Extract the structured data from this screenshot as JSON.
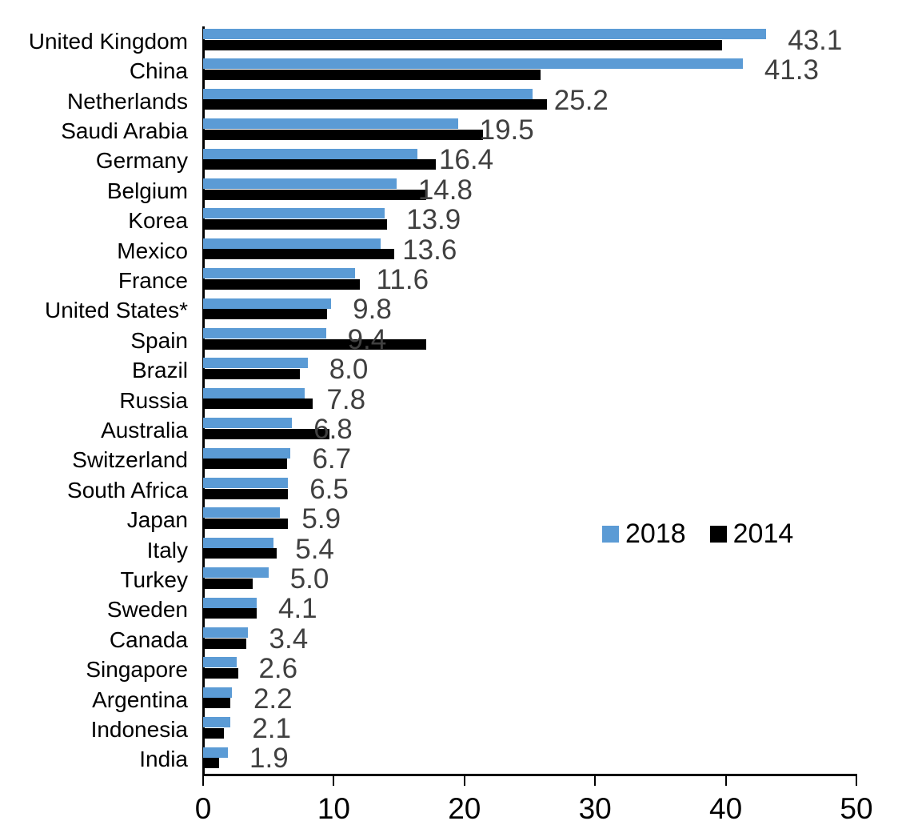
{
  "chart_data": {
    "type": "bar",
    "orientation": "horizontal",
    "title": "",
    "xlabel": "",
    "ylabel": "",
    "xlim": [
      0,
      50
    ],
    "x_tick_labels": [
      "0",
      "10",
      "20",
      "30",
      "40",
      "50"
    ],
    "x_tick_values": [
      0,
      10,
      20,
      30,
      40,
      50
    ],
    "grid": false,
    "legend_position": "middle-right",
    "categories": [
      "United Kingdom",
      "China",
      "Netherlands",
      "Saudi Arabia",
      "Germany",
      "Belgium",
      "Korea",
      "Mexico",
      "France",
      "United States*",
      "Spain",
      "Brazil",
      "Russia",
      "Australia",
      "Switzerland",
      "South Africa",
      "Japan",
      "Italy",
      "Turkey",
      "Sweden",
      "Canada",
      "Singapore",
      "Argentina",
      "Indonesia",
      "India"
    ],
    "series": [
      {
        "name": "2018",
        "color": "#5B9BD5",
        "values": [
          43.1,
          41.3,
          25.2,
          19.5,
          16.4,
          14.8,
          13.9,
          13.6,
          11.6,
          9.8,
          9.4,
          8.0,
          7.8,
          6.8,
          6.7,
          6.5,
          5.9,
          5.4,
          5.0,
          4.1,
          3.4,
          2.6,
          2.2,
          2.1,
          1.9
        ]
      },
      {
        "name": "2014",
        "color": "#000000",
        "values": [
          39.7,
          25.8,
          26.3,
          21.4,
          17.8,
          17.1,
          14.1,
          14.6,
          12.0,
          9.5,
          17.1,
          7.4,
          8.4,
          9.7,
          6.4,
          6.5,
          6.5,
          5.6,
          3.8,
          4.1,
          3.3,
          2.7,
          2.1,
          1.6,
          1.2
        ]
      }
    ],
    "data_labels": [
      "43.1",
      "41.3",
      "25.2",
      "19.5",
      "16.4",
      "14.8",
      "13.9",
      "13.6",
      "11.6",
      "9.8",
      "9.4",
      "8.0",
      "7.8",
      "6.8",
      "6.7",
      "6.5",
      "5.9",
      "5.4",
      "5.0",
      "4.1",
      "3.4",
      "2.6",
      "2.2",
      "2.1",
      "1.9"
    ],
    "data_label_color": "#404040"
  },
  "legend": {
    "items": [
      {
        "label": "2018",
        "color": "#5B9BD5"
      },
      {
        "label": "2014",
        "color": "#000000"
      }
    ]
  }
}
